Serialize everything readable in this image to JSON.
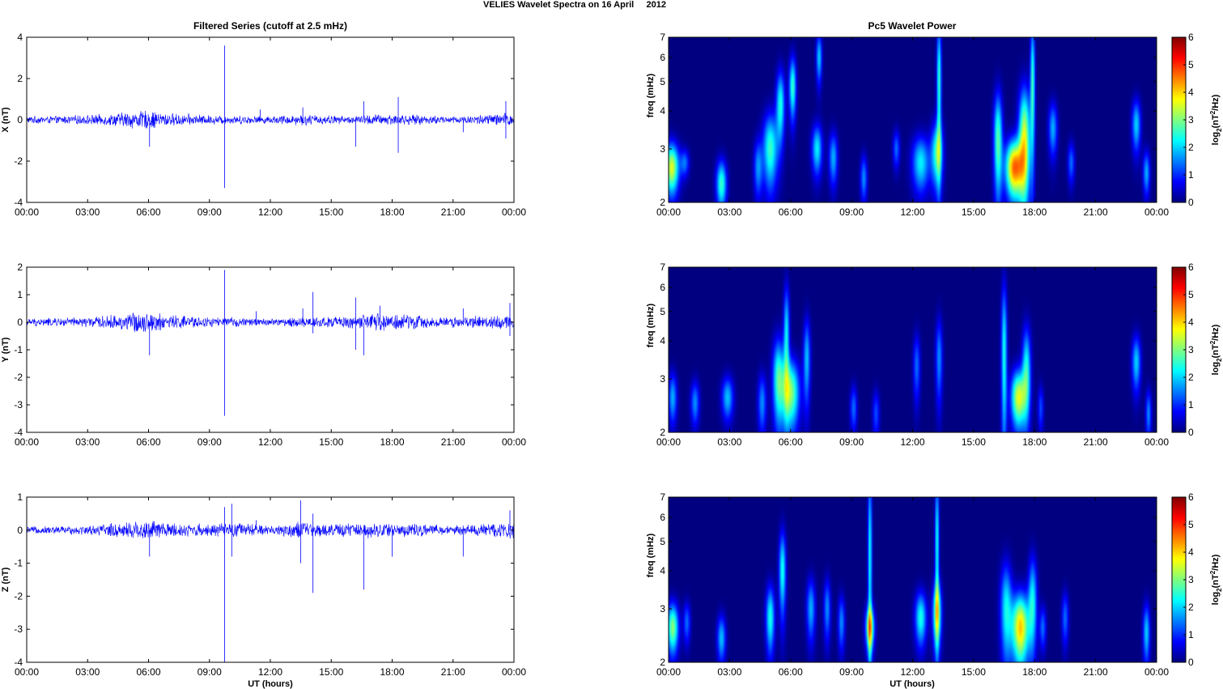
{
  "figure": {
    "suptitle": "VELIES Wavelet Spectra on 16 April     2012",
    "left_title": "Filtered Series (cutoff at 2.5 mHz)",
    "right_title": "Pc5 Wavelet Power",
    "xlabel": "UT (hours)"
  },
  "colors": {
    "trace": "#0000ff",
    "axis": "#000000",
    "background": "#ffffff",
    "colormap": "jet"
  },
  "chart_data": [
    {
      "type": "line",
      "panel": "time-series",
      "component": "X",
      "ylabel": "X (nT)",
      "ylim": [
        -4,
        4
      ],
      "yticks": [
        "-4",
        "-2",
        "0",
        "2",
        "4"
      ],
      "xticks": [
        "00:00",
        "03:00",
        "06:00",
        "09:00",
        "12:00",
        "15:00",
        "18:00",
        "21:00",
        "00:00"
      ],
      "xlim_hours": [
        0,
        24
      ],
      "noise_profile": [
        [
          0,
          0.2
        ],
        [
          1.5,
          0.2
        ],
        [
          4,
          0.3
        ],
        [
          5,
          0.45
        ],
        [
          6,
          0.5
        ],
        [
          7,
          0.35
        ],
        [
          9,
          0.25
        ],
        [
          12,
          0.2
        ],
        [
          13.5,
          0.3
        ],
        [
          16,
          0.2
        ],
        [
          17,
          0.3
        ],
        [
          18,
          0.3
        ],
        [
          21,
          0.2
        ],
        [
          22,
          0.25
        ],
        [
          24,
          0.4
        ]
      ],
      "spikes": [
        [
          6.05,
          -1.3
        ],
        [
          9.75,
          3.6
        ],
        [
          9.75,
          -3.3
        ],
        [
          11.5,
          0.5
        ],
        [
          13.6,
          0.6
        ],
        [
          16.2,
          -1.3
        ],
        [
          16.6,
          0.9
        ],
        [
          18.3,
          1.1
        ],
        [
          18.3,
          -1.6
        ],
        [
          21.5,
          -0.6
        ],
        [
          23.6,
          0.9
        ],
        [
          23.6,
          -0.9
        ]
      ]
    },
    {
      "type": "line",
      "panel": "time-series",
      "component": "Y",
      "ylabel": "Y (nT)",
      "ylim": [
        -4,
        2
      ],
      "yticks": [
        "-4",
        "-3",
        "-2",
        "-1",
        "0",
        "1",
        "2"
      ],
      "xticks": [
        "00:00",
        "03:00",
        "06:00",
        "09:00",
        "12:00",
        "15:00",
        "18:00",
        "21:00",
        "00:00"
      ],
      "xlim_hours": [
        0,
        24
      ],
      "noise_profile": [
        [
          0,
          0.15
        ],
        [
          3,
          0.2
        ],
        [
          4.5,
          0.3
        ],
        [
          5.5,
          0.45
        ],
        [
          6.5,
          0.35
        ],
        [
          9,
          0.2
        ],
        [
          12,
          0.15
        ],
        [
          13.5,
          0.2
        ],
        [
          16,
          0.25
        ],
        [
          17,
          0.35
        ],
        [
          18.5,
          0.35
        ],
        [
          20,
          0.2
        ],
        [
          24,
          0.3
        ]
      ],
      "spikes": [
        [
          6.05,
          -1.2
        ],
        [
          9.75,
          1.9
        ],
        [
          9.75,
          -3.4
        ],
        [
          11.3,
          0.4
        ],
        [
          13.6,
          0.5
        ],
        [
          14.1,
          1.1
        ],
        [
          14.1,
          -0.4
        ],
        [
          16.2,
          0.9
        ],
        [
          16.2,
          -1.0
        ],
        [
          16.6,
          -1.2
        ],
        [
          17.4,
          0.6
        ],
        [
          21.5,
          0.5
        ],
        [
          23.8,
          0.7
        ],
        [
          23.8,
          -0.5
        ]
      ]
    },
    {
      "type": "line",
      "panel": "time-series",
      "component": "Z",
      "ylabel": "Z (nT)",
      "ylim": [
        -4,
        1
      ],
      "yticks": [
        "-4",
        "-3",
        "-2",
        "-1",
        "0",
        "1"
      ],
      "xticks": [
        "00:00",
        "03:00",
        "06:00",
        "09:00",
        "12:00",
        "15:00",
        "18:00",
        "21:00",
        "00:00"
      ],
      "xlim_hours": [
        0,
        24
      ],
      "noise_profile": [
        [
          0,
          0.12
        ],
        [
          3,
          0.15
        ],
        [
          5,
          0.3
        ],
        [
          6,
          0.35
        ],
        [
          7,
          0.25
        ],
        [
          9,
          0.2
        ],
        [
          10.5,
          0.25
        ],
        [
          12,
          0.15
        ],
        [
          13.5,
          0.3
        ],
        [
          14.5,
          0.2
        ],
        [
          16.5,
          0.25
        ],
        [
          18,
          0.25
        ],
        [
          21,
          0.15
        ],
        [
          24,
          0.3
        ]
      ],
      "spikes": [
        [
          6.05,
          -0.8
        ],
        [
          9.75,
          0.7
        ],
        [
          9.75,
          -4.0
        ],
        [
          10.1,
          0.8
        ],
        [
          10.1,
          -0.8
        ],
        [
          11.3,
          0.3
        ],
        [
          13.5,
          0.9
        ],
        [
          13.5,
          -1.0
        ],
        [
          14.1,
          -1.9
        ],
        [
          14.1,
          0.5
        ],
        [
          16.6,
          -1.8
        ],
        [
          18.0,
          -0.8
        ],
        [
          21.5,
          -0.8
        ],
        [
          23.8,
          0.6
        ]
      ]
    },
    {
      "type": "heatmap",
      "panel": "wavelet-power",
      "component": "X",
      "ylabel": "freq (mHz)",
      "yscale": "log2",
      "ylim": [
        2,
        7
      ],
      "yticks": [
        "2",
        "3",
        "4",
        "5",
        "6",
        "7"
      ],
      "xticks": [
        "00:00",
        "03:00",
        "06:00",
        "09:00",
        "12:00",
        "15:00",
        "18:00",
        "21:00",
        "00:00"
      ],
      "xlim_hours": [
        0,
        24
      ],
      "colorbar": {
        "label": "log2(nT2/Hz)",
        "range": [
          0,
          6
        ],
        "ticks": [
          "0",
          "1",
          "2",
          "3",
          "4",
          "5",
          "6"
        ]
      },
      "bursts": [
        [
          0.15,
          2.6,
          0.25,
          0.35,
          3.6
        ],
        [
          0.8,
          2.7,
          0.15,
          0.2,
          1.4
        ],
        [
          2.6,
          2.3,
          0.18,
          0.3,
          2.6
        ],
        [
          4.4,
          2.6,
          0.15,
          0.4,
          1.6
        ],
        [
          5.0,
          3.0,
          0.25,
          0.6,
          2.6
        ],
        [
          5.5,
          4.2,
          0.15,
          0.8,
          2.4
        ],
        [
          6.1,
          4.8,
          0.12,
          0.8,
          2.6
        ],
        [
          7.3,
          3.0,
          0.18,
          0.4,
          2.2
        ],
        [
          7.4,
          6.0,
          0.1,
          0.8,
          2.0
        ],
        [
          8.1,
          2.8,
          0.15,
          0.4,
          1.8
        ],
        [
          9.6,
          2.4,
          0.12,
          0.3,
          1.6
        ],
        [
          11.2,
          3.0,
          0.12,
          0.3,
          1.4
        ],
        [
          12.4,
          2.7,
          0.3,
          0.4,
          2.2
        ],
        [
          13.2,
          2.9,
          0.2,
          0.5,
          2.6
        ],
        [
          13.3,
          5.0,
          0.08,
          1.8,
          2.6
        ],
        [
          16.2,
          3.2,
          0.15,
          0.9,
          2.8
        ],
        [
          17.0,
          2.6,
          0.3,
          0.4,
          4.6
        ],
        [
          17.5,
          3.2,
          0.2,
          1.0,
          3.6
        ],
        [
          17.9,
          5.0,
          0.08,
          1.8,
          2.6
        ],
        [
          18.9,
          3.5,
          0.15,
          0.5,
          1.8
        ],
        [
          19.8,
          2.7,
          0.12,
          0.3,
          1.4
        ],
        [
          23.0,
          3.6,
          0.15,
          0.5,
          2.0
        ],
        [
          23.5,
          2.5,
          0.12,
          0.3,
          1.8
        ]
      ]
    },
    {
      "type": "heatmap",
      "panel": "wavelet-power",
      "component": "Y",
      "ylabel": "freq (mHz)",
      "yscale": "log2",
      "ylim": [
        2,
        7
      ],
      "yticks": [
        "2",
        "3",
        "4",
        "5",
        "6",
        "7"
      ],
      "xticks": [
        "00:00",
        "03:00",
        "06:00",
        "09:00",
        "12:00",
        "15:00",
        "18:00",
        "21:00",
        "00:00"
      ],
      "xlim_hours": [
        0,
        24
      ],
      "colorbar": {
        "label": "log2(nT2/Hz)",
        "range": [
          0,
          6
        ],
        "ticks": [
          "0",
          "1",
          "2",
          "3",
          "4",
          "5",
          "6"
        ]
      },
      "bursts": [
        [
          0.2,
          2.6,
          0.15,
          0.35,
          1.8
        ],
        [
          1.3,
          2.5,
          0.15,
          0.3,
          1.6
        ],
        [
          2.9,
          2.6,
          0.2,
          0.3,
          1.9
        ],
        [
          4.6,
          2.5,
          0.15,
          0.4,
          1.6
        ],
        [
          5.4,
          3.0,
          0.2,
          0.7,
          2.6
        ],
        [
          6.0,
          2.7,
          0.3,
          0.5,
          3.1
        ],
        [
          5.8,
          4.2,
          0.1,
          1.2,
          2.2
        ],
        [
          6.8,
          3.5,
          0.12,
          0.8,
          1.9
        ],
        [
          9.1,
          2.4,
          0.12,
          0.3,
          1.4
        ],
        [
          10.2,
          2.3,
          0.12,
          0.3,
          1.2
        ],
        [
          12.2,
          3.3,
          0.12,
          0.6,
          1.4
        ],
        [
          13.3,
          3.5,
          0.12,
          0.8,
          1.6
        ],
        [
          16.5,
          3.6,
          0.1,
          1.6,
          2.4
        ],
        [
          17.2,
          2.6,
          0.25,
          0.4,
          3.6
        ],
        [
          17.6,
          3.2,
          0.15,
          0.8,
          2.4
        ],
        [
          18.3,
          2.4,
          0.1,
          0.3,
          1.2
        ],
        [
          23.0,
          3.4,
          0.15,
          0.5,
          2.0
        ],
        [
          23.6,
          2.3,
          0.1,
          0.3,
          1.6
        ]
      ]
    },
    {
      "type": "heatmap",
      "panel": "wavelet-power",
      "component": "Z",
      "ylabel": "freq (mHz)",
      "yscale": "log2",
      "ylim": [
        2,
        7
      ],
      "yticks": [
        "2",
        "3",
        "4",
        "5",
        "6",
        "7"
      ],
      "xticks": [
        "00:00",
        "03:00",
        "06:00",
        "09:00",
        "12:00",
        "15:00",
        "18:00",
        "21:00",
        "00:00"
      ],
      "xlim_hours": [
        0,
        24
      ],
      "colorbar": {
        "label": "log2(nT2/Hz)",
        "range": [
          0,
          6
        ],
        "ticks": [
          "0",
          "1",
          "2",
          "3",
          "4",
          "5",
          "6"
        ]
      },
      "bursts": [
        [
          0.2,
          2.6,
          0.2,
          0.35,
          3.1
        ],
        [
          0.9,
          2.7,
          0.12,
          0.3,
          1.4
        ],
        [
          2.6,
          2.4,
          0.15,
          0.3,
          1.9
        ],
        [
          5.0,
          2.8,
          0.15,
          0.5,
          2.4
        ],
        [
          5.6,
          4.0,
          0.12,
          0.9,
          2.4
        ],
        [
          7.0,
          3.0,
          0.15,
          0.5,
          1.8
        ],
        [
          7.8,
          3.0,
          0.12,
          0.5,
          1.6
        ],
        [
          8.5,
          2.7,
          0.12,
          0.4,
          1.6
        ],
        [
          9.9,
          2.6,
          0.15,
          0.3,
          3.3
        ],
        [
          9.9,
          4.5,
          0.07,
          2.5,
          2.4
        ],
        [
          12.4,
          2.8,
          0.2,
          0.4,
          2.4
        ],
        [
          13.2,
          2.9,
          0.15,
          0.5,
          3.1
        ],
        [
          13.2,
          5.0,
          0.07,
          2.0,
          2.4
        ],
        [
          16.6,
          3.0,
          0.2,
          0.8,
          2.2
        ],
        [
          17.3,
          2.6,
          0.3,
          0.5,
          4.1
        ],
        [
          17.9,
          3.2,
          0.15,
          0.8,
          2.2
        ],
        [
          18.4,
          2.6,
          0.12,
          0.3,
          1.4
        ],
        [
          19.5,
          2.8,
          0.12,
          0.4,
          1.4
        ],
        [
          23.5,
          2.5,
          0.12,
          0.4,
          2.0
        ]
      ]
    }
  ]
}
